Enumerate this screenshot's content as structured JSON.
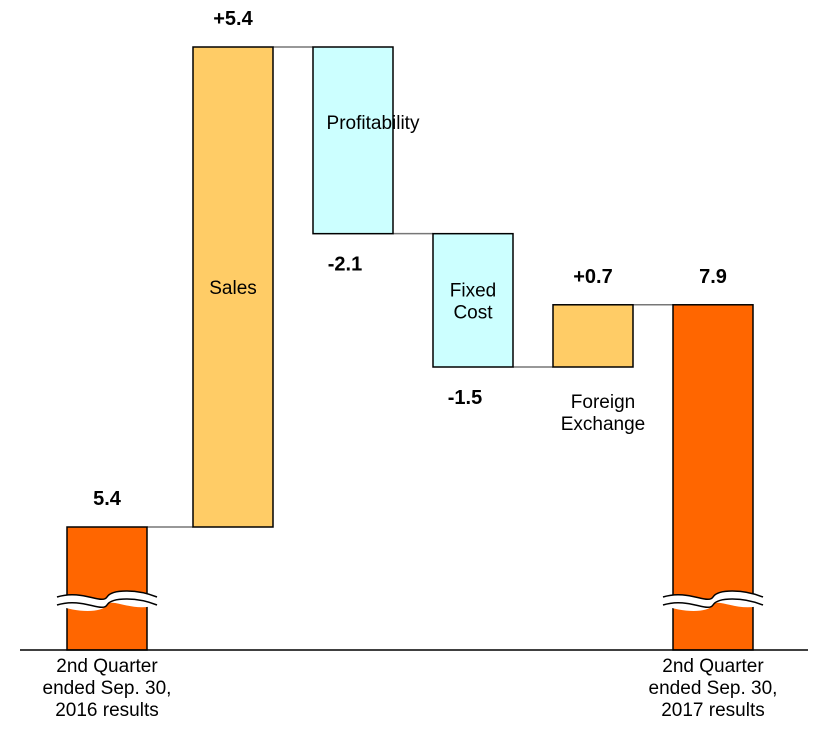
{
  "chart_data": {
    "type": "waterfall",
    "steps": [
      {
        "id": "start",
        "kind": "total",
        "value": 5.4,
        "value_label": "5.4",
        "label_lines": [
          "2nd Quarter",
          "ended Sep. 30,",
          "2016 results"
        ],
        "color": "#ff6600"
      },
      {
        "id": "sales",
        "kind": "delta",
        "value": 5.4,
        "value_label": "+5.4",
        "label_lines": [
          "Sales"
        ],
        "color": "#ffcc66"
      },
      {
        "id": "profit",
        "kind": "delta",
        "value": -2.1,
        "value_label": "-2.1",
        "label_lines": [
          "Profitability"
        ],
        "color": "#ccffff"
      },
      {
        "id": "fixed",
        "kind": "delta",
        "value": -1.5,
        "value_label": "-1.5",
        "label_lines": [
          "Fixed",
          "Cost"
        ],
        "color": "#ccffff"
      },
      {
        "id": "fx",
        "kind": "delta",
        "value": 0.7,
        "value_label": "+0.7",
        "label_lines": [
          "Foreign",
          "Exchange"
        ],
        "color": "#ffcc66"
      },
      {
        "id": "end",
        "kind": "total",
        "value": 7.9,
        "value_label": "7.9",
        "label_lines": [
          "2nd Quarter",
          "ended Sep. 30,",
          "2017 results"
        ],
        "color": "#ff6600"
      }
    ],
    "axis_broken": true
  }
}
